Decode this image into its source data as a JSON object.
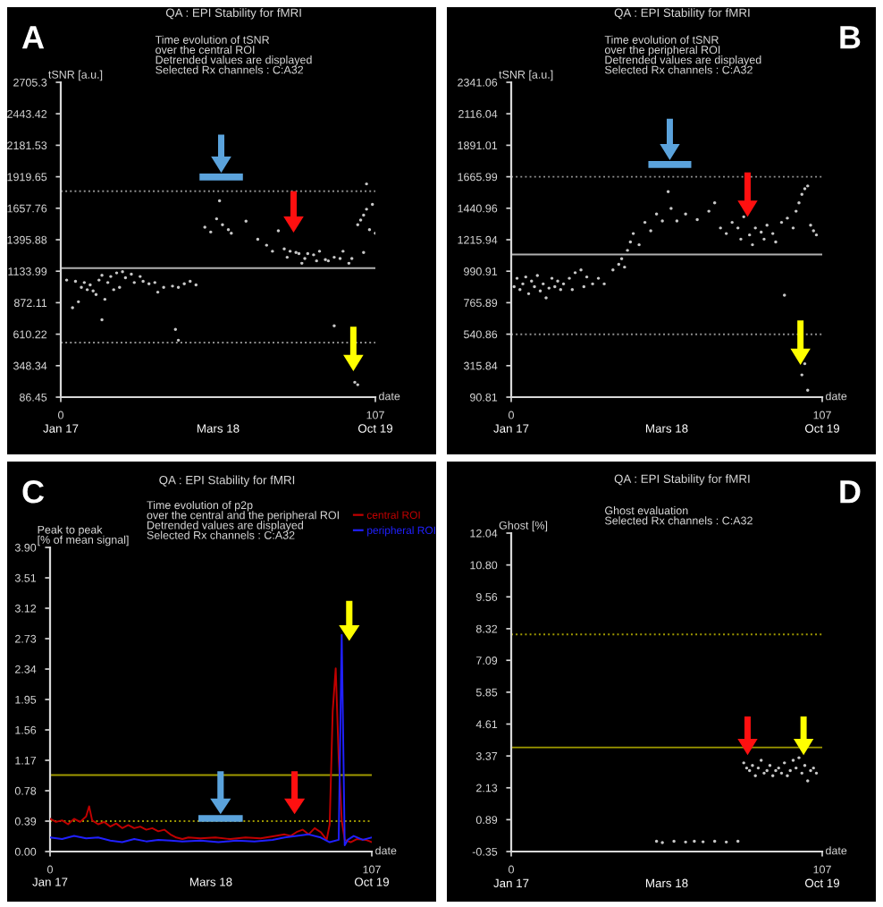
{
  "chart_data": [
    {
      "type": "scatter",
      "title": "QA : EPI Stability for fMRI",
      "subtitle": "Time evolution of tSNR\nover the central ROI\nDetrended values are displayed\nSelected Rx channels : C:A32",
      "ylabel": "tSNR [a.u.]",
      "xlabel": "date",
      "annotations": [
        "A",
        "Jan 17",
        "Mars 18",
        "Oct 19"
      ],
      "xlim": [
        0,
        107
      ],
      "xticks": [
        0,
        107
      ],
      "ylim": [
        86.45,
        2705.3
      ],
      "yticks": [
        86.45,
        348.34,
        610.22,
        872.11,
        1133.99,
        1395.88,
        1657.76,
        1919.65,
        2181.53,
        2443.42,
        2705.3
      ],
      "marker": "circle",
      "grid": false,
      "legend": false,
      "ref_lines": [
        {
          "axis": "y",
          "value": 1160,
          "color": "#b0b0b0",
          "line_style": "solid"
        },
        {
          "axis": "y",
          "value": 1800,
          "color": "#909090",
          "line_style": "dotted"
        },
        {
          "axis": "y",
          "value": 540,
          "color": "#909090",
          "line_style": "dotted"
        }
      ],
      "series": [
        {
          "color": "#c8c8c8",
          "x": [
            2,
            4,
            5,
            6,
            7,
            8,
            9,
            10,
            11,
            12,
            13,
            14,
            15,
            16,
            17,
            18,
            19,
            20,
            21,
            22,
            24,
            25,
            27,
            28,
            30,
            32,
            33,
            35,
            38,
            40,
            42,
            44,
            46,
            39,
            40,
            14,
            49,
            51,
            53,
            54,
            55,
            57,
            58,
            63,
            67,
            70,
            72,
            74,
            76,
            77,
            78,
            80,
            81,
            82,
            83,
            84,
            86,
            87,
            88,
            90,
            91,
            93,
            95,
            96,
            98,
            99,
            101,
            102,
            103,
            104,
            105,
            104,
            103,
            106,
            107,
            93,
            100,
            101
          ],
          "values": [
            1060,
            830,
            1050,
            880,
            1000,
            1040,
            980,
            1020,
            970,
            940,
            1060,
            1100,
            900,
            1040,
            1090,
            980,
            1120,
            1000,
            1130,
            1080,
            1110,
            1040,
            1090,
            1050,
            1030,
            1040,
            960,
            1000,
            1010,
            1000,
            1030,
            1050,
            1020,
            650,
            560,
            730,
            1500,
            1460,
            1570,
            1720,
            1520,
            1480,
            1450,
            1550,
            1400,
            1350,
            1300,
            1470,
            1320,
            1250,
            1300,
            1290,
            1280,
            1200,
            1240,
            1280,
            1270,
            1220,
            1300,
            1230,
            1220,
            1250,
            1240,
            1300,
            1200,
            1240,
            1520,
            1560,
            1600,
            1650,
            1480,
            1860,
            1290,
            1690,
            1450,
            680,
            210,
            190
          ]
        }
      ]
    },
    {
      "type": "scatter",
      "title": "QA : EPI Stability for fMRI",
      "subtitle": "Time evolution of tSNR\nover the peripheral ROI\nDetrended values are displayed\nSelected Rx channels : C:A32",
      "ylabel": "tSNR [a.u.]",
      "xlabel": "date",
      "annotations": [
        "B",
        "Jan 17",
        "Mars 18",
        "Oct 19"
      ],
      "xlim": [
        0,
        107
      ],
      "xticks": [
        0,
        107
      ],
      "ylim": [
        90.81,
        2341.06
      ],
      "yticks": [
        90.81,
        315.84,
        540.86,
        765.89,
        990.91,
        1215.94,
        1440.96,
        1665.99,
        1891.01,
        2116.04,
        2341.06
      ],
      "marker": "circle",
      "grid": false,
      "legend": false,
      "ref_lines": [
        {
          "axis": "y",
          "value": 1110,
          "color": "#b0b0b0",
          "line_style": "solid"
        },
        {
          "axis": "y",
          "value": 1666,
          "color": "#909090",
          "line_style": "dotted"
        },
        {
          "axis": "y",
          "value": 540,
          "color": "#909090",
          "line_style": "dotted"
        }
      ],
      "series": [
        {
          "color": "#c8c8c8",
          "x": [
            1,
            2,
            3,
            4,
            5,
            6,
            7,
            8,
            9,
            10,
            11,
            12,
            13,
            14,
            15,
            16,
            17,
            18,
            20,
            21,
            22,
            24,
            25,
            26,
            28,
            30,
            32,
            35,
            37,
            38,
            39,
            40,
            41,
            42,
            44,
            46,
            48,
            50,
            52,
            54,
            55,
            57,
            60,
            64,
            68,
            70,
            72,
            74,
            76,
            78,
            79,
            80,
            82,
            83,
            84,
            86,
            87,
            88,
            90,
            91,
            93,
            94,
            95,
            97,
            98,
            99,
            100,
            101,
            102,
            103,
            104,
            105,
            101,
            100,
            102
          ],
          "values": [
            880,
            940,
            860,
            900,
            950,
            830,
            920,
            880,
            960,
            850,
            900,
            800,
            870,
            940,
            880,
            920,
            860,
            900,
            940,
            860,
            980,
            1000,
            880,
            950,
            900,
            940,
            900,
            1000,
            1040,
            1080,
            1020,
            1140,
            1200,
            1260,
            1180,
            1340,
            1280,
            1400,
            1350,
            1560,
            1440,
            1350,
            1400,
            1360,
            1420,
            1480,
            1300,
            1260,
            1340,
            1300,
            1220,
            1380,
            1250,
            1180,
            1300,
            1270,
            1220,
            1320,
            1260,
            1200,
            1340,
            820,
            1370,
            1300,
            1420,
            1480,
            1540,
            1580,
            1600,
            1320,
            1280,
            1250,
            330,
            250,
            140
          ]
        }
      ]
    },
    {
      "type": "line",
      "title": "QA : EPI Stability for fMRI",
      "subtitle": "Time evolution of p2p\nover the central and the peripheral ROI\nDetrended values are displayed\nSelected Rx channels : C:A32",
      "ylabel": "Peak to peak\n[% of mean signal]",
      "xlabel": "date",
      "annotations": [
        "C",
        "Jan 17",
        "Mars 18",
        "Oct 19"
      ],
      "xlim": [
        0,
        107
      ],
      "xticks": [
        0,
        107
      ],
      "ylim": [
        0.0,
        3.9
      ],
      "yticks": [
        {
          "value": 0,
          "label": "0.00"
        },
        0.39,
        0.78,
        1.17,
        1.56,
        1.95,
        2.34,
        2.73,
        3.12,
        3.51,
        {
          "value": 3.9,
          "label": "3.90"
        }
      ],
      "marker": "none",
      "grid": false,
      "legend": "top right",
      "ref_lines": [
        {
          "axis": "y",
          "value": 0.98,
          "color": "#a09a00",
          "line_style": "solid"
        },
        {
          "axis": "y",
          "value": 0.39,
          "color": "#a09a00",
          "line_style": "dotted"
        }
      ],
      "series": [
        {
          "name": "central ROI",
          "color": "#c00000",
          "x": [
            0,
            2,
            4,
            6,
            8,
            10,
            12,
            13,
            14,
            16,
            18,
            20,
            22,
            24,
            26,
            28,
            30,
            32,
            34,
            36,
            38,
            40,
            42,
            44,
            46,
            50,
            55,
            60,
            65,
            70,
            75,
            78,
            80,
            82,
            84,
            86,
            88,
            90,
            92,
            93,
            94,
            95,
            96,
            97,
            98,
            100,
            102,
            105,
            107
          ],
          "values": [
            0.42,
            0.38,
            0.4,
            0.35,
            0.42,
            0.38,
            0.45,
            0.58,
            0.4,
            0.35,
            0.38,
            0.32,
            0.36,
            0.3,
            0.34,
            0.3,
            0.32,
            0.28,
            0.3,
            0.26,
            0.28,
            0.22,
            0.18,
            0.16,
            0.18,
            0.17,
            0.18,
            0.16,
            0.18,
            0.17,
            0.2,
            0.22,
            0.2,
            0.25,
            0.28,
            0.22,
            0.3,
            0.25,
            0.15,
            0.35,
            1.8,
            2.35,
            1.2,
            0.4,
            0.15,
            0.12,
            0.16,
            0.15,
            0.12
          ]
        },
        {
          "name": "peripheral ROI",
          "color": "#2020ff",
          "x": [
            0,
            4,
            8,
            12,
            16,
            20,
            24,
            28,
            32,
            36,
            40,
            44,
            50,
            56,
            62,
            68,
            74,
            78,
            82,
            86,
            90,
            93,
            96,
            97,
            98,
            99,
            101,
            104,
            107
          ],
          "values": [
            0.18,
            0.16,
            0.2,
            0.17,
            0.18,
            0.14,
            0.12,
            0.16,
            0.13,
            0.15,
            0.14,
            0.13,
            0.14,
            0.12,
            0.14,
            0.13,
            0.15,
            0.18,
            0.2,
            0.22,
            0.18,
            0.12,
            0.15,
            2.78,
            0.08,
            0.15,
            0.2,
            0.15,
            0.18
          ]
        }
      ]
    },
    {
      "type": "scatter",
      "title": "QA : EPI Stability for fMRI",
      "subtitle": "Ghost evaluation\nSelected Rx channels : C:A32",
      "ylabel": "Ghost [%]",
      "xlabel": "date",
      "annotations": [
        "D",
        "Jan 17",
        "Mars 18",
        "Oct 19"
      ],
      "xlim": [
        0,
        107
      ],
      "xticks": [
        0,
        107
      ],
      "ylim": [
        -0.35,
        12.04
      ],
      "yticks": [
        {
          "value": -0.35,
          "label": "-0.35"
        },
        0.89,
        2.13,
        3.37,
        4.61,
        5.85,
        7.09,
        8.32,
        9.56,
        {
          "value": 10.8,
          "label": "10.80"
        },
        12.04
      ],
      "marker": "circle",
      "grid": false,
      "legend": false,
      "ref_lines": [
        {
          "axis": "y",
          "value": 3.7,
          "color": "#a09a00",
          "line_style": "solid"
        },
        {
          "axis": "y",
          "value": 8.1,
          "color": "#a09a00",
          "line_style": "dotted"
        }
      ],
      "series": [
        {
          "color": "#c8c8c8",
          "x": [
            50,
            52,
            56,
            60,
            63,
            66,
            70,
            74,
            78,
            80,
            81,
            82,
            83,
            84,
            85,
            86,
            87,
            88,
            89,
            90,
            91,
            92,
            93,
            94,
            95,
            96,
            97,
            98,
            99,
            100,
            101,
            102,
            103,
            104,
            105
          ],
          "values": [
            0.05,
            0.0,
            0.05,
            0.02,
            0.05,
            0.03,
            0.05,
            0.02,
            0.05,
            3.1,
            2.9,
            2.8,
            3.0,
            2.6,
            2.9,
            3.2,
            2.7,
            2.8,
            3.0,
            2.6,
            2.8,
            2.9,
            2.7,
            3.1,
            2.6,
            2.8,
            3.2,
            2.9,
            3.3,
            2.7,
            3.0,
            2.4,
            2.8,
            2.9,
            2.7
          ]
        }
      ]
    }
  ]
}
